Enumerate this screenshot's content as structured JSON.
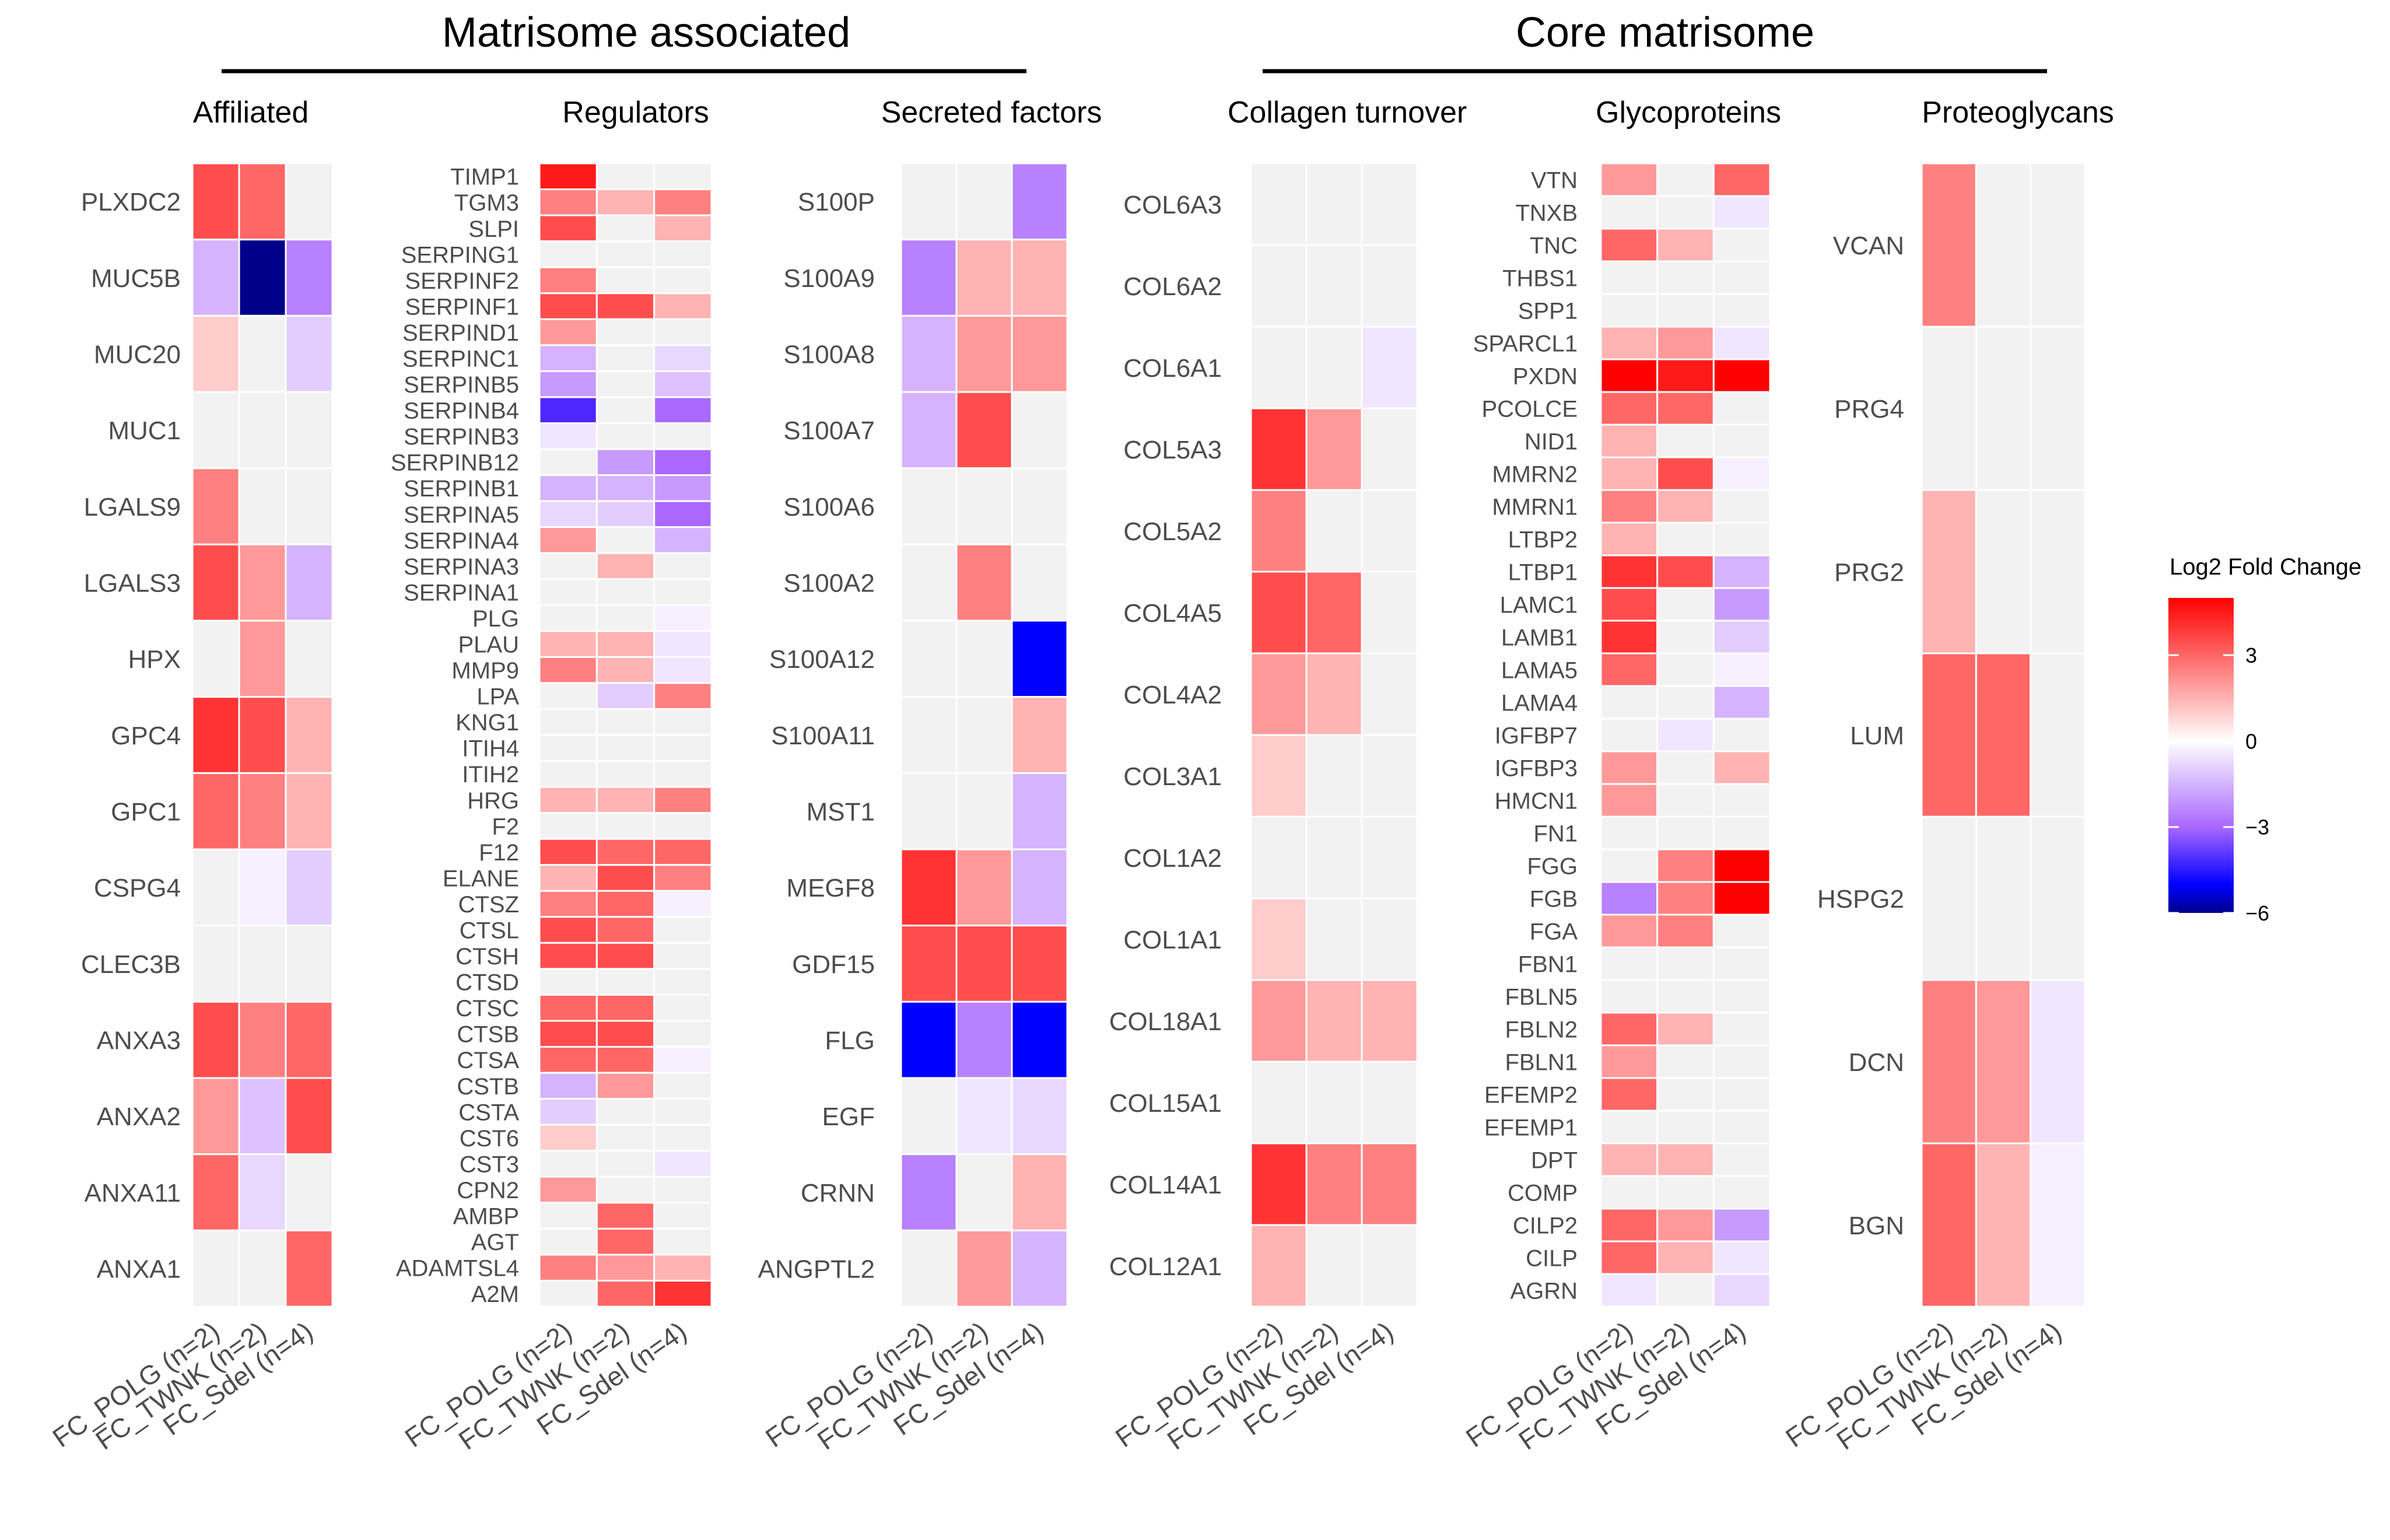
{
  "chart_data": {
    "type": "heatmap",
    "colorscale": {
      "title": "Log2 Fold Change",
      "range": [
        -6,
        5
      ],
      "ticks": [
        3,
        0,
        -3,
        -6
      ],
      "tick_labels": [
        "3",
        "0",
        "−3",
        "−6"
      ],
      "colors": {
        "low": "#00008B",
        "mid_low": "#0000FF",
        "mid": "#FFFFFF",
        "high": "#FF0000"
      }
    },
    "columns": [
      "FC_POLG (n=2)",
      "FC_TWNK (n=2)",
      "FC_Sdel (n=4)"
    ],
    "groups": [
      {
        "title": "Matrisome associated",
        "panels": [
          "Affiliated",
          "Regulators",
          "Secreted factors"
        ]
      },
      {
        "title": "Core matrisome",
        "panels": [
          "Collagen turnover",
          "Glycoproteins",
          "Proteoglycans"
        ]
      }
    ],
    "panels": [
      {
        "title": "Affiliated",
        "rows": [
          "PLXDC2",
          "MUC5B",
          "MUC20",
          "MUC1",
          "LGALS9",
          "LGALS3",
          "HPX",
          "GPC4",
          "GPC1",
          "CSPG4",
          "CLEC3B",
          "ANXA3",
          "ANXA2",
          "ANXA11",
          "ANXA1"
        ],
        "values": [
          [
            3.5,
            3,
            null
          ],
          [
            -1.5,
            -6,
            -2.5
          ],
          [
            1,
            null,
            -1
          ],
          [
            null,
            null,
            null
          ],
          [
            2.5,
            null,
            null
          ],
          [
            3.5,
            2,
            -1.5
          ],
          [
            null,
            2,
            null
          ],
          [
            4,
            3.5,
            1.5
          ],
          [
            3,
            2.5,
            1.5
          ],
          [
            null,
            -0.3,
            -1
          ],
          [
            null,
            null,
            null
          ],
          [
            3.5,
            2.5,
            3
          ],
          [
            2,
            -1.2,
            3.5
          ],
          [
            3,
            -0.8,
            null
          ],
          [
            null,
            null,
            3
          ]
        ]
      },
      {
        "title": "Regulators",
        "rows": [
          "TIMP1",
          "TGM3",
          "SLPI",
          "SERPING1",
          "SERPINF2",
          "SERPINF1",
          "SERPIND1",
          "SERPINC1",
          "SERPINB5",
          "SERPINB4",
          "SERPINB3",
          "SERPINB12",
          "SERPINB1",
          "SERPINA5",
          "SERPINA4",
          "SERPINA3",
          "SERPINA1",
          "PLG",
          "PLAU",
          "MMP9",
          "LPA",
          "KNG1",
          "ITIH4",
          "ITIH2",
          "HRG",
          "F2",
          "F12",
          "ELANE",
          "CTSZ",
          "CTSL",
          "CTSH",
          "CTSD",
          "CTSC",
          "CTSB",
          "CTSA",
          "CSTB",
          "CSTA",
          "CST6",
          "CST3",
          "CPN2",
          "AMBP",
          "AGT",
          "ADAMTSL4",
          "A2M"
        ],
        "values": [
          [
            4.5,
            null,
            null
          ],
          [
            2.5,
            1.5,
            2.5
          ],
          [
            3.5,
            null,
            1.5
          ],
          [
            null,
            null,
            null
          ],
          [
            2.5,
            null,
            null
          ],
          [
            3.5,
            3.5,
            1.5
          ],
          [
            2,
            null,
            null
          ],
          [
            -1.5,
            null,
            -0.8
          ],
          [
            -2,
            null,
            -1.2
          ],
          [
            -4,
            null,
            -3
          ],
          [
            -0.5,
            null,
            null
          ],
          [
            null,
            -2,
            -3
          ],
          [
            -1.5,
            -1.5,
            -2
          ],
          [
            -0.8,
            -1,
            -3
          ],
          [
            2,
            null,
            -1.5
          ],
          [
            null,
            1.5,
            null
          ],
          [
            null,
            null,
            null
          ],
          [
            null,
            null,
            -0.3
          ],
          [
            1.5,
            1.5,
            -0.5
          ],
          [
            2.5,
            1.5,
            -0.5
          ],
          [
            null,
            -1,
            2.5
          ],
          [
            null,
            null,
            null
          ],
          [
            null,
            null,
            null
          ],
          [
            null,
            null,
            null
          ],
          [
            1.5,
            1.5,
            2.5
          ],
          [
            null,
            null,
            null
          ],
          [
            3.5,
            3,
            3
          ],
          [
            1.5,
            3.5,
            2.5
          ],
          [
            2.5,
            3,
            -0.3
          ],
          [
            3.5,
            3,
            null
          ],
          [
            3.5,
            3.5,
            null
          ],
          [
            null,
            null,
            null
          ],
          [
            3,
            3,
            null
          ],
          [
            3.5,
            3.5,
            null
          ],
          [
            3,
            3,
            -0.3
          ],
          [
            -1.5,
            2,
            null
          ],
          [
            -1,
            null,
            null
          ],
          [
            1,
            null,
            null
          ],
          [
            null,
            null,
            -0.5
          ],
          [
            2,
            null,
            null
          ],
          [
            null,
            3,
            null
          ],
          [
            null,
            3,
            null
          ],
          [
            2.5,
            2,
            1.5
          ],
          [
            null,
            3,
            4
          ]
        ]
      },
      {
        "title": "Secreted factors",
        "rows": [
          "S100P",
          "S100A9",
          "S100A8",
          "S100A7",
          "S100A6",
          "S100A2",
          "S100A12",
          "S100A11",
          "MST1",
          "MEGF8",
          "GDF15",
          "FLG",
          "EGF",
          "CRNN",
          "ANGPTL2"
        ],
        "values": [
          [
            null,
            null,
            -2.5
          ],
          [
            -2.5,
            1.5,
            1.5
          ],
          [
            -1.5,
            2,
            2
          ],
          [
            -1.5,
            3.5,
            null
          ],
          [
            null,
            null,
            null
          ],
          [
            null,
            2.5,
            null
          ],
          [
            null,
            null,
            -5
          ],
          [
            null,
            null,
            1.5
          ],
          [
            null,
            null,
            -1.5
          ],
          [
            4,
            2,
            -1.5
          ],
          [
            3.5,
            3.5,
            3.5
          ],
          [
            -5,
            -2.5,
            -5
          ],
          [
            null,
            -0.5,
            -0.8
          ],
          [
            -2.5,
            null,
            1.5
          ],
          [
            null,
            2,
            -1.5
          ]
        ]
      },
      {
        "title": "Collagen turnover",
        "rows": [
          "COL6A3",
          "COL6A2",
          "COL6A1",
          "COL5A3",
          "COL5A2",
          "COL4A5",
          "COL4A2",
          "COL3A1",
          "COL1A2",
          "COL1A1",
          "COL18A1",
          "COL15A1",
          "COL14A1",
          "COL12A1"
        ],
        "values": [
          [
            null,
            null,
            null
          ],
          [
            null,
            null,
            null
          ],
          [
            null,
            null,
            -0.5
          ],
          [
            4,
            2,
            null
          ],
          [
            2.5,
            null,
            null
          ],
          [
            3.5,
            3,
            null
          ],
          [
            2,
            1.5,
            null
          ],
          [
            1,
            null,
            null
          ],
          [
            null,
            null,
            null
          ],
          [
            1,
            null,
            null
          ],
          [
            2,
            1.5,
            1.5
          ],
          [
            null,
            null,
            null
          ],
          [
            4,
            2.5,
            2.5
          ],
          [
            1.5,
            null,
            null
          ]
        ]
      },
      {
        "title": "Glycoproteins",
        "rows": [
          "VTN",
          "TNXB",
          "TNC",
          "THBS1",
          "SPP1",
          "SPARCL1",
          "PXDN",
          "PCOLCE",
          "NID1",
          "MMRN2",
          "MMRN1",
          "LTBP2",
          "LTBP1",
          "LAMC1",
          "LAMB1",
          "LAMA5",
          "LAMA4",
          "IGFBP7",
          "IGFBP3",
          "HMCN1",
          "FN1",
          "FGG",
          "FGB",
          "FGA",
          "FBN1",
          "FBLN5",
          "FBLN2",
          "FBLN1",
          "EFEMP2",
          "EFEMP1",
          "DPT",
          "COMP",
          "CILP2",
          "CILP",
          "AGRN"
        ],
        "values": [
          [
            2,
            null,
            3
          ],
          [
            null,
            null,
            -0.5
          ],
          [
            3,
            1.5,
            null
          ],
          [
            null,
            null,
            null
          ],
          [
            null,
            null,
            null
          ],
          [
            1.5,
            2,
            -0.5
          ],
          [
            5,
            4.5,
            5
          ],
          [
            3,
            3,
            null
          ],
          [
            1.5,
            null,
            null
          ],
          [
            1.5,
            3.5,
            -0.3
          ],
          [
            2.5,
            1.5,
            null
          ],
          [
            1.5,
            null,
            null
          ],
          [
            4,
            3.5,
            -1.5
          ],
          [
            3.5,
            null,
            -2
          ],
          [
            4,
            null,
            -1
          ],
          [
            3,
            null,
            -0.3
          ],
          [
            null,
            null,
            -1.5
          ],
          [
            null,
            -0.5,
            null
          ],
          [
            2,
            null,
            1.5
          ],
          [
            2,
            null,
            null
          ],
          [
            null,
            null,
            null
          ],
          [
            null,
            2.5,
            5
          ],
          [
            -2.5,
            2.5,
            5
          ],
          [
            2,
            2.5,
            null
          ],
          [
            null,
            null,
            null
          ],
          [
            null,
            null,
            null
          ],
          [
            3,
            1.5,
            null
          ],
          [
            2,
            null,
            null
          ],
          [
            3,
            null,
            null
          ],
          [
            null,
            null,
            null
          ],
          [
            1.5,
            1.5,
            null
          ],
          [
            null,
            null,
            null
          ],
          [
            3,
            2,
            -2
          ],
          [
            3,
            1.5,
            -0.5
          ],
          [
            -0.5,
            null,
            -0.8
          ]
        ]
      },
      {
        "title": "Proteoglycans",
        "rows": [
          "VCAN",
          "PRG4",
          "PRG2",
          "LUM",
          "HSPG2",
          "DCN",
          "BGN"
        ],
        "values": [
          [
            2.5,
            null,
            null
          ],
          [
            null,
            null,
            null
          ],
          [
            1.5,
            null,
            null
          ],
          [
            3,
            3,
            null
          ],
          [
            null,
            null,
            null
          ],
          [
            2.5,
            2,
            -0.5
          ],
          [
            3,
            1.5,
            -0.3
          ]
        ]
      }
    ]
  }
}
